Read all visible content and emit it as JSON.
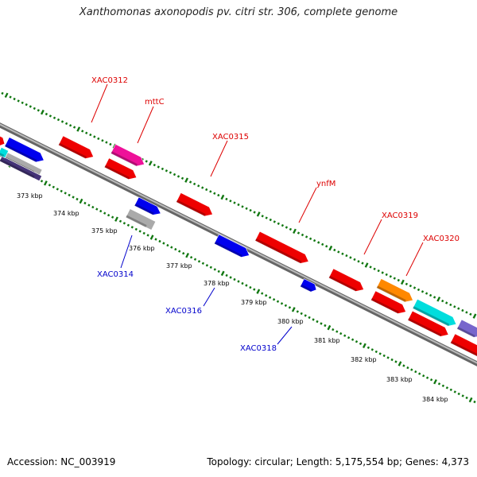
{
  "title": "Xanthomonas axonopodis pv. citri str. 306, complete genome",
  "footer": {
    "accession_label": "Accession: NC_003919",
    "topology_label": "Topology: circular; Length: 5,175,554 bp; Genes: 4,373"
  },
  "kbp_ticks": [
    "373 kbp",
    "374 kbp",
    "375 kbp",
    "376 kbp",
    "377 kbp",
    "378 kbp",
    "379 kbp",
    "380 kbp",
    "381 kbp",
    "382 kbp",
    "383 kbp",
    "384 kbp"
  ],
  "forward_gene_labels": [
    "XAC0312",
    "mttC",
    "XAC0315",
    "ynfM",
    "XAC0319",
    "XAC0320"
  ],
  "reverse_gene_labels": [
    "XAC0314",
    "XAC0316",
    "XAC0318"
  ],
  "colors": {
    "red": "#ee0000",
    "blue": "#0000ee",
    "pink": "#ee1199",
    "gray": "#aaaaaa",
    "orange": "#ff8800",
    "cyan": "#00dddd",
    "slate": "#7766cc",
    "navy": "#443377",
    "backbone": "#888888",
    "tick_green": "#117711",
    "forward_label": "#dd0000",
    "reverse_label": "#0000cc"
  }
}
